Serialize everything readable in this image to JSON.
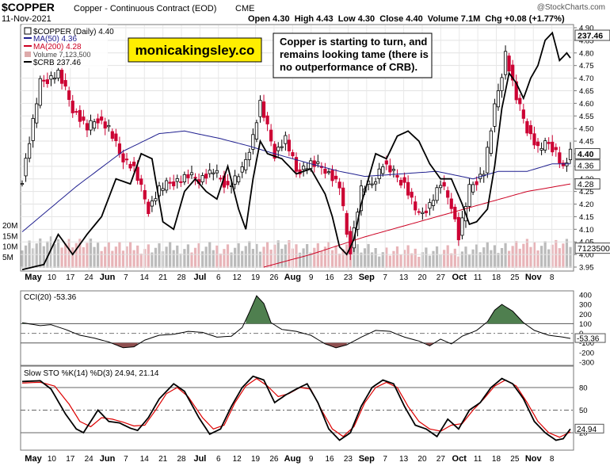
{
  "header": {
    "symbol": "$COPPER",
    "name": "Copper - Continuous Contract (EOD)",
    "exchange": "CME",
    "date": "11-Nov-2021",
    "ohlc": "Open 4.30  High 4.43  Low 4.30  Close 4.40  Volume 7.1M  Chg +0.08 (+1.77%)",
    "watermark": "@StockCharts.com"
  },
  "legend": {
    "price": "$COPPER (Daily) 4.40",
    "ma50": "MA(50) 4.36",
    "ma200": "MA(200) 4.28",
    "volume": "Volume 7,123,500",
    "crb": "$CRB 237.46"
  },
  "brand": "monicakingsley.co",
  "annotation": "Copper is starting to turn, and remains looking tame (there is no outperformance of CRB).",
  "colors": {
    "up": "#ffffff",
    "down": "#cc0033",
    "ma50": "#1f1f8f",
    "ma200": "#cc0022",
    "crb": "#000000",
    "cci_pos": "#4f7f4f",
    "cci_neg": "#8f5050",
    "sto_k": "#000000",
    "sto_d": "#dd0000",
    "brand_bg": "#ffee00"
  },
  "chart_data": [
    {
      "type": "candlestick",
      "title": "$COPPER (Daily) 4.40",
      "ylim": [
        3.95,
        4.9
      ],
      "y_ticks": [
        "4.90",
        "4.85",
        "4.80",
        "4.75",
        "4.70",
        "4.65",
        "4.60",
        "4.55",
        "4.50",
        "4.45",
        "4.40",
        "4.35",
        "4.30",
        "4.25",
        "4.20",
        "4.15",
        "4.10",
        "4.05",
        "4.00",
        "3.95"
      ],
      "volume_ticks": [
        "20M",
        "15M",
        "10M",
        "5M"
      ],
      "x_ticks": [
        "May",
        "10",
        "17",
        "24",
        "Jun",
        "7",
        "14",
        "21",
        "28",
        "Jul",
        "6",
        "12",
        "19",
        "26",
        "Aug",
        "9",
        "16",
        "23",
        "Sep",
        "7",
        "13",
        "20",
        "27",
        "Oct",
        "11",
        "18",
        "25",
        "Nov",
        "8"
      ],
      "badges": [
        {
          "label": "237.46",
          "value": 4.87,
          "dark": true
        },
        {
          "label": "4.40",
          "value": 4.4,
          "dark": true
        },
        {
          "label": "4.36",
          "value": 4.355,
          "dark": false
        },
        {
          "label": "4.28",
          "value": 4.28,
          "dark": false
        },
        {
          "label": "7123500",
          "value": 4.025,
          "dark": false
        }
      ],
      "close_anchors": [
        [
          0,
          4.3
        ],
        [
          5,
          4.68
        ],
        [
          10,
          4.72
        ],
        [
          14,
          4.58
        ],
        [
          18,
          4.5
        ],
        [
          21,
          4.54
        ],
        [
          24,
          4.5
        ],
        [
          27,
          4.4
        ],
        [
          31,
          4.34
        ],
        [
          35,
          4.18
        ],
        [
          38,
          4.26
        ],
        [
          42,
          4.29
        ],
        [
          46,
          4.31
        ],
        [
          49,
          4.3
        ],
        [
          53,
          4.33
        ],
        [
          57,
          4.27
        ],
        [
          61,
          4.33
        ],
        [
          64,
          4.47
        ],
        [
          66,
          4.6
        ],
        [
          70,
          4.4
        ],
        [
          73,
          4.46
        ],
        [
          76,
          4.33
        ],
        [
          80,
          4.36
        ],
        [
          84,
          4.34
        ],
        [
          88,
          4.27
        ],
        [
          90,
          4.08
        ],
        [
          91,
          4.02
        ],
        [
          94,
          4.26
        ],
        [
          97,
          4.28
        ],
        [
          100,
          4.36
        ],
        [
          103,
          4.32
        ],
        [
          106,
          4.28
        ],
        [
          110,
          4.15
        ],
        [
          113,
          4.2
        ],
        [
          116,
          4.28
        ],
        [
          119,
          4.2
        ],
        [
          121,
          4.07
        ],
        [
          124,
          4.26
        ],
        [
          128,
          4.33
        ],
        [
          131,
          4.58
        ],
        [
          133,
          4.72
        ],
        [
          134,
          4.8
        ],
        [
          137,
          4.62
        ],
        [
          140,
          4.5
        ],
        [
          143,
          4.42
        ],
        [
          146,
          4.44
        ],
        [
          148,
          4.41
        ],
        [
          150,
          4.34
        ],
        [
          152,
          4.4
        ]
      ],
      "ma50_anchors": [
        [
          0,
          4.09
        ],
        [
          15,
          4.27
        ],
        [
          28,
          4.41
        ],
        [
          38,
          4.48
        ],
        [
          45,
          4.49
        ],
        [
          55,
          4.46
        ],
        [
          63,
          4.43
        ],
        [
          70,
          4.4
        ],
        [
          80,
          4.36
        ],
        [
          88,
          4.33
        ],
        [
          95,
          4.31
        ],
        [
          105,
          4.32
        ],
        [
          115,
          4.33
        ],
        [
          125,
          4.3
        ],
        [
          132,
          4.33
        ],
        [
          140,
          4.33
        ],
        [
          147,
          4.36
        ],
        [
          152,
          4.36
        ]
      ],
      "ma200_anchors": [
        [
          67,
          3.95
        ],
        [
          80,
          4.0
        ],
        [
          95,
          4.07
        ],
        [
          110,
          4.13
        ],
        [
          125,
          4.19
        ],
        [
          140,
          4.25
        ],
        [
          152,
          4.28
        ]
      ],
      "crb_anchors": [
        [
          0,
          3.94
        ],
        [
          6,
          3.96
        ],
        [
          10,
          4.08
        ],
        [
          14,
          4.0
        ],
        [
          18,
          4.08
        ],
        [
          22,
          4.15
        ],
        [
          26,
          4.3
        ],
        [
          30,
          4.28
        ],
        [
          33,
          4.4
        ],
        [
          36,
          4.38
        ],
        [
          39,
          4.13
        ],
        [
          42,
          4.1
        ],
        [
          45,
          4.25
        ],
        [
          48,
          4.3
        ],
        [
          51,
          4.25
        ],
        [
          54,
          4.22
        ],
        [
          57,
          4.35
        ],
        [
          60,
          4.18
        ],
        [
          62,
          4.1
        ],
        [
          64,
          4.3
        ],
        [
          66,
          4.45
        ],
        [
          68,
          4.4
        ],
        [
          72,
          4.38
        ],
        [
          76,
          4.32
        ],
        [
          80,
          4.34
        ],
        [
          84,
          4.24
        ],
        [
          86,
          4.15
        ],
        [
          88,
          4.03
        ],
        [
          90,
          4.0
        ],
        [
          92,
          4.06
        ],
        [
          94,
          4.2
        ],
        [
          96,
          4.3
        ],
        [
          98,
          4.4
        ],
        [
          101,
          4.38
        ],
        [
          104,
          4.47
        ],
        [
          107,
          4.49
        ],
        [
          110,
          4.45
        ],
        [
          113,
          4.36
        ],
        [
          116,
          4.3
        ],
        [
          119,
          4.3
        ],
        [
          122,
          4.2
        ],
        [
          124,
          4.12
        ],
        [
          126,
          4.13
        ],
        [
          129,
          4.18
        ],
        [
          131,
          4.35
        ],
        [
          133,
          4.58
        ],
        [
          135,
          4.72
        ],
        [
          137,
          4.68
        ],
        [
          139,
          4.62
        ],
        [
          141,
          4.7
        ],
        [
          143,
          4.75
        ],
        [
          145,
          4.85
        ],
        [
          147,
          4.88
        ],
        [
          149,
          4.77
        ],
        [
          151,
          4.8
        ],
        [
          152,
          4.78
        ]
      ],
      "volume_anchors": [
        [
          0,
          7
        ],
        [
          10,
          8
        ],
        [
          20,
          7
        ],
        [
          30,
          6
        ],
        [
          40,
          6
        ],
        [
          50,
          6
        ],
        [
          60,
          6
        ],
        [
          70,
          7
        ],
        [
          80,
          6
        ],
        [
          90,
          6
        ],
        [
          100,
          5
        ],
        [
          110,
          5
        ],
        [
          120,
          5
        ],
        [
          130,
          6
        ],
        [
          140,
          7
        ],
        [
          152,
          7
        ]
      ]
    },
    {
      "type": "line",
      "title": "CCI(20) -53.36",
      "ylim": [
        -300,
        400
      ],
      "y_ticks": [
        "400",
        "300",
        "200",
        "100",
        "0",
        "-100",
        "-200",
        "-300"
      ],
      "badge": "-53.36",
      "anchors": [
        [
          0,
          110
        ],
        [
          5,
          80
        ],
        [
          8,
          90
        ],
        [
          12,
          40
        ],
        [
          16,
          -20
        ],
        [
          20,
          -50
        ],
        [
          24,
          -90
        ],
        [
          28,
          -150
        ],
        [
          31,
          -140
        ],
        [
          34,
          -70
        ],
        [
          38,
          -20
        ],
        [
          42,
          -10
        ],
        [
          46,
          20
        ],
        [
          50,
          10
        ],
        [
          54,
          -40
        ],
        [
          58,
          -30
        ],
        [
          61,
          60
        ],
        [
          63,
          220
        ],
        [
          65,
          390
        ],
        [
          67,
          310
        ],
        [
          69,
          110
        ],
        [
          72,
          40
        ],
        [
          76,
          20
        ],
        [
          80,
          -20
        ],
        [
          84,
          -110
        ],
        [
          87,
          -150
        ],
        [
          90,
          -120
        ],
        [
          94,
          -40
        ],
        [
          98,
          30
        ],
        [
          102,
          20
        ],
        [
          106,
          -40
        ],
        [
          110,
          -80
        ],
        [
          113,
          -130
        ],
        [
          116,
          -60
        ],
        [
          119,
          -110
        ],
        [
          122,
          -30
        ],
        [
          126,
          30
        ],
        [
          129,
          120
        ],
        [
          131,
          240
        ],
        [
          133,
          300
        ],
        [
          136,
          230
        ],
        [
          139,
          110
        ],
        [
          142,
          30
        ],
        [
          146,
          -20
        ],
        [
          150,
          -40
        ],
        [
          152,
          -53
        ]
      ]
    },
    {
      "type": "line",
      "title": "Slow STO %K(14) %D(3) 24.94, 21.14",
      "ylim": [
        0,
        100
      ],
      "y_ticks": [
        "80",
        "50",
        "20"
      ],
      "badge": "24.94",
      "series": [
        {
          "name": "%K(14)",
          "anchors": [
            [
              0,
              88
            ],
            [
              5,
              89
            ],
            [
              8,
              78
            ],
            [
              12,
              45
            ],
            [
              15,
              25
            ],
            [
              17,
              20
            ],
            [
              21,
              50
            ],
            [
              24,
              35
            ],
            [
              27,
              33
            ],
            [
              30,
              26
            ],
            [
              32,
              23
            ],
            [
              35,
              40
            ],
            [
              38,
              65
            ],
            [
              42,
              85
            ],
            [
              45,
              75
            ],
            [
              49,
              40
            ],
            [
              52,
              18
            ],
            [
              55,
              25
            ],
            [
              58,
              55
            ],
            [
              61,
              80
            ],
            [
              64,
              95
            ],
            [
              67,
              90
            ],
            [
              70,
              60
            ],
            [
              73,
              70
            ],
            [
              76,
              78
            ],
            [
              79,
              85
            ],
            [
              82,
              60
            ],
            [
              85,
              25
            ],
            [
              88,
              10
            ],
            [
              91,
              20
            ],
            [
              94,
              55
            ],
            [
              97,
              80
            ],
            [
              100,
              90
            ],
            [
              103,
              85
            ],
            [
              106,
              55
            ],
            [
              109,
              30
            ],
            [
              112,
              25
            ],
            [
              115,
              15
            ],
            [
              118,
              38
            ],
            [
              121,
              25
            ],
            [
              124,
              50
            ],
            [
              127,
              60
            ],
            [
              130,
              80
            ],
            [
              133,
              92
            ],
            [
              136,
              85
            ],
            [
              139,
              65
            ],
            [
              142,
              35
            ],
            [
              145,
              20
            ],
            [
              148,
              10
            ],
            [
              150,
              12
            ],
            [
              152,
              25
            ]
          ]
        },
        {
          "name": "%D(3)",
          "anchors": [
            [
              0,
              86
            ],
            [
              5,
              87
            ],
            [
              9,
              82
            ],
            [
              13,
              58
            ],
            [
              16,
              35
            ],
            [
              19,
              28
            ],
            [
              22,
              40
            ],
            [
              25,
              38
            ],
            [
              28,
              34
            ],
            [
              31,
              29
            ],
            [
              34,
              30
            ],
            [
              37,
              50
            ],
            [
              40,
              72
            ],
            [
              43,
              80
            ],
            [
              46,
              68
            ],
            [
              50,
              40
            ],
            [
              53,
              25
            ],
            [
              56,
              30
            ],
            [
              59,
              60
            ],
            [
              62,
              82
            ],
            [
              65,
              92
            ],
            [
              68,
              82
            ],
            [
              71,
              68
            ],
            [
              74,
              72
            ],
            [
              77,
              80
            ],
            [
              80,
              78
            ],
            [
              83,
              50
            ],
            [
              86,
              25
            ],
            [
              89,
              15
            ],
            [
              92,
              28
            ],
            [
              95,
              60
            ],
            [
              98,
              80
            ],
            [
              101,
              87
            ],
            [
              104,
              80
            ],
            [
              107,
              55
            ],
            [
              110,
              35
            ],
            [
              113,
              25
            ],
            [
              116,
              22
            ],
            [
              119,
              30
            ],
            [
              122,
              32
            ],
            [
              125,
              50
            ],
            [
              128,
              65
            ],
            [
              131,
              82
            ],
            [
              134,
              90
            ],
            [
              137,
              82
            ],
            [
              140,
              60
            ],
            [
              143,
              35
            ],
            [
              146,
              20
            ],
            [
              149,
              14
            ],
            [
              152,
              21
            ]
          ]
        }
      ]
    }
  ]
}
